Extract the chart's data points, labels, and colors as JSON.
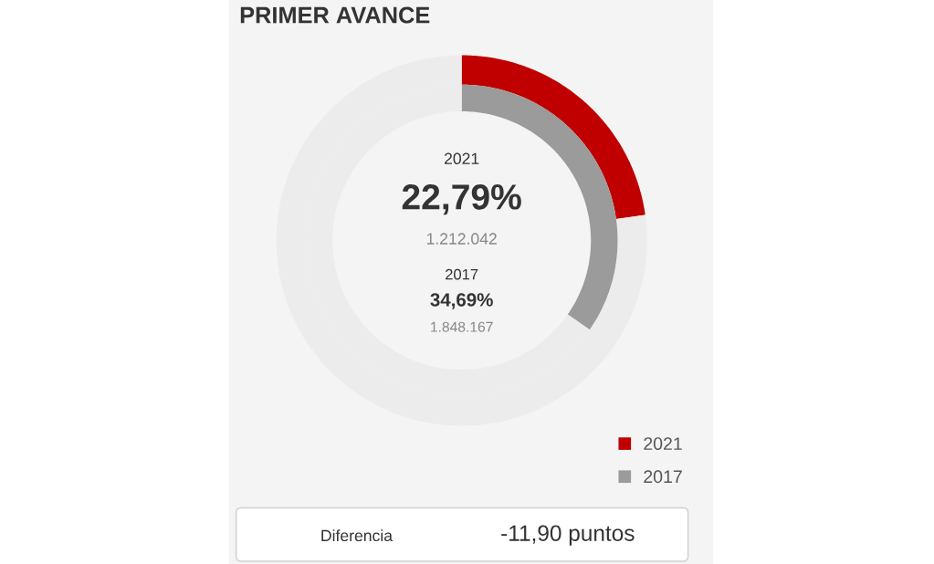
{
  "chart_data": {
    "type": "donut",
    "title": "PRIMER AVANCE",
    "categories": [
      null,
      null
    ],
    "series": [
      {
        "name": "2021",
        "colors": [
          "#c00000",
          "#ececec"
        ],
        "values": [
          22.79,
          77.21
        ]
      },
      {
        "name": "2017",
        "colors": [
          "#9b9b9b",
          "#ececec"
        ],
        "values": [
          34.69,
          65.31
        ]
      }
    ],
    "annotations": [
      "22,79%",
      "1.212.042",
      "34,69%",
      "1.848.167",
      "Diferencia",
      "-11,90 puntos"
    ],
    "legend": "bottom right"
  }
}
